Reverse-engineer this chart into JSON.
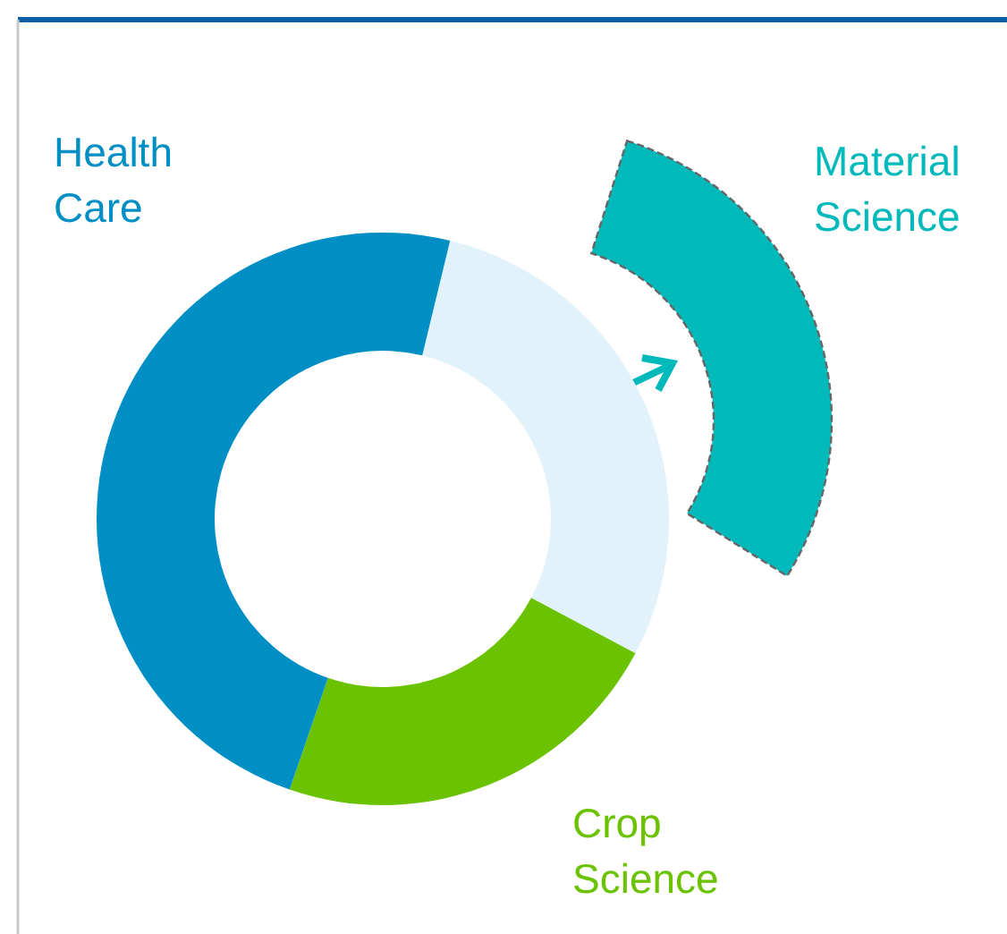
{
  "chart_data": {
    "type": "donut",
    "categories": [
      "Material Science",
      "Crop Science",
      "Health Care"
    ],
    "values": [
      29,
      22.5,
      48.5
    ],
    "colors": [
      "#e1f2fb",
      "#6bc200",
      "#008fc5"
    ]
  }
}
